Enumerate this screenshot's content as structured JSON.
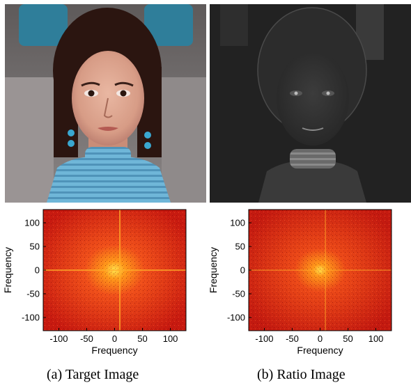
{
  "panels": [
    {
      "id": "a",
      "caption": "(a) Target Image",
      "photo_description_tone": "color",
      "spectrum": {
        "xlabel": "Frequency",
        "ylabel": "Frequency",
        "xticks": [
          -100,
          -50,
          0,
          50,
          100
        ],
        "yticks": [
          100,
          50,
          0,
          -50,
          -100
        ],
        "xlim": [
          -128,
          128
        ],
        "ylim": [
          -128,
          128
        ],
        "colormap": "hot"
      }
    },
    {
      "id": "b",
      "caption": "(b) Ratio Image",
      "photo_description_tone": "grayscale-dark",
      "spectrum": {
        "xlabel": "Frequency",
        "ylabel": "Frequency",
        "xticks": [
          -100,
          -50,
          0,
          50,
          100
        ],
        "yticks": [
          100,
          50,
          0,
          -50,
          -100
        ],
        "xlim": [
          -128,
          128
        ],
        "ylim": [
          -128,
          128
        ],
        "colormap": "hot"
      }
    }
  ],
  "colors": {
    "spectrum_base": "#cc1c10",
    "spectrum_center": "#ffe24a",
    "shirt": "#6fb6d8",
    "chair": "#8f8a8a"
  }
}
